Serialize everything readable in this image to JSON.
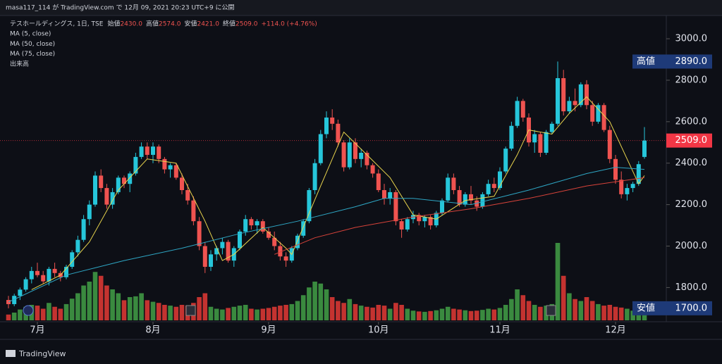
{
  "header": {
    "publisher": "masa117_114 が TradingView.com で 12月 09, 2021 20:23 UTC+9 に公開"
  },
  "footer": {
    "brand": "TradingView"
  },
  "chart_data": {
    "type": "candlestick",
    "symbol": "テスホールディングス, 1日, TSE",
    "ohlc_legend": [
      {
        "label": "始値",
        "value": "2430.0"
      },
      {
        "label": "高値",
        "value": "2574.0"
      },
      {
        "label": "安値",
        "value": "2421.0"
      },
      {
        "label": "終値",
        "value": "2509.0"
      }
    ],
    "change": "+114.0 (+4.76%)",
    "volume_label": "出来高",
    "up_color": "#26c6da",
    "down_color": "#ef5350",
    "volume_up_color": "#43a047",
    "volume_down_color": "#e53935",
    "open": [
      1740,
      1720,
      1760,
      1790,
      1840,
      1880,
      1860,
      1830,
      1890,
      1870,
      1850,
      1900,
      1970,
      2030,
      2130,
      2200,
      2340,
      2280,
      2200,
      2260,
      2330,
      2300,
      2350,
      2430,
      2480,
      2440,
      2480,
      2420,
      2370,
      2390,
      2330,
      2270,
      2220,
      2120,
      2000,
      1900,
      1960,
      1990,
      2020,
      1930,
      1990,
      2070,
      2130,
      2100,
      2120,
      2070,
      2040,
      2000,
      1950,
      1930,
      1990,
      2050,
      2120,
      2270,
      2400,
      2540,
      2620,
      2590,
      2500,
      2380,
      2500,
      2420,
      2450,
      2390,
      2350,
      2270,
      2230,
      2260,
      2120,
      2080,
      2130,
      2150,
      2120,
      2140,
      2100,
      2160,
      2220,
      2330,
      2270,
      2200,
      2250,
      2220,
      2190,
      2250,
      2300,
      2280,
      2360,
      2470,
      2580,
      2700,
      2620,
      2500,
      2540,
      2450,
      2550,
      2590,
      2810,
      2650,
      2700,
      2680,
      2780,
      2680,
      2600,
      2680,
      2560,
      2420,
      2320,
      2250,
      2280,
      2300,
      2430
    ],
    "high": [
      1760,
      1770,
      1800,
      1850,
      1900,
      1920,
      1880,
      1900,
      1920,
      1880,
      1910,
      1980,
      2050,
      2150,
      2220,
      2360,
      2370,
      2300,
      2280,
      2340,
      2340,
      2360,
      2450,
      2500,
      2500,
      2500,
      2490,
      2430,
      2400,
      2400,
      2350,
      2300,
      2240,
      2140,
      2020,
      1980,
      2000,
      2040,
      2030,
      2000,
      2080,
      2150,
      2140,
      2130,
      2130,
      2090,
      2070,
      2020,
      1970,
      2000,
      2060,
      2130,
      2280,
      2420,
      2560,
      2650,
      2660,
      2610,
      2510,
      2520,
      2520,
      2470,
      2460,
      2400,
      2370,
      2300,
      2280,
      2270,
      2130,
      2140,
      2170,
      2160,
      2150,
      2150,
      2170,
      2230,
      2350,
      2350,
      2290,
      2260,
      2290,
      2240,
      2260,
      2320,
      2330,
      2380,
      2480,
      2600,
      2720,
      2710,
      2640,
      2560,
      2550,
      2560,
      2600,
      2890,
      2850,
      2720,
      2760,
      2790,
      2800,
      2700,
      2690,
      2690,
      2580,
      2440,
      2360,
      2300,
      2310,
      2410,
      2574
    ],
    "low": [
      1700,
      1710,
      1740,
      1780,
      1820,
      1850,
      1820,
      1810,
      1850,
      1830,
      1840,
      1890,
      1950,
      2020,
      2100,
      2190,
      2260,
      2180,
      2180,
      2250,
      2280,
      2260,
      2340,
      2420,
      2420,
      2400,
      2400,
      2350,
      2330,
      2320,
      2250,
      2200,
      2100,
      1980,
      1870,
      1880,
      1930,
      1960,
      1920,
      1900,
      1980,
      2050,
      2080,
      2060,
      2060,
      2030,
      1980,
      1930,
      1900,
      1920,
      1980,
      2040,
      2110,
      2250,
      2390,
      2520,
      2560,
      2480,
      2360,
      2370,
      2400,
      2380,
      2370,
      2330,
      2260,
      2200,
      2200,
      2100,
      2040,
      2070,
      2110,
      2100,
      2090,
      2080,
      2090,
      2150,
      2210,
      2250,
      2190,
      2190,
      2200,
      2170,
      2180,
      2240,
      2260,
      2270,
      2350,
      2460,
      2570,
      2600,
      2480,
      2450,
      2430,
      2440,
      2540,
      2580,
      2630,
      2640,
      2650,
      2670,
      2660,
      2580,
      2590,
      2550,
      2400,
      2300,
      2230,
      2220,
      2260,
      2290,
      2421
    ],
    "close": [
      1720,
      1760,
      1790,
      1840,
      1880,
      1860,
      1830,
      1890,
      1870,
      1850,
      1900,
      1970,
      2030,
      2130,
      2200,
      2340,
      2280,
      2200,
      2260,
      2330,
      2300,
      2350,
      2430,
      2480,
      2440,
      2480,
      2420,
      2370,
      2390,
      2330,
      2270,
      2220,
      2120,
      2000,
      1900,
      1960,
      1990,
      2020,
      1930,
      1990,
      2070,
      2130,
      2100,
      2120,
      2070,
      2040,
      2000,
      1950,
      1930,
      1990,
      2050,
      2120,
      2270,
      2400,
      2540,
      2620,
      2590,
      2500,
      2380,
      2500,
      2420,
      2450,
      2390,
      2350,
      2270,
      2230,
      2260,
      2120,
      2080,
      2130,
      2150,
      2120,
      2140,
      2100,
      2160,
      2220,
      2330,
      2270,
      2200,
      2250,
      2220,
      2190,
      2250,
      2300,
      2280,
      2360,
      2470,
      2580,
      2700,
      2620,
      2500,
      2540,
      2450,
      2550,
      2590,
      2810,
      2650,
      2700,
      2680,
      2780,
      2680,
      2600,
      2680,
      2560,
      2420,
      2320,
      2250,
      2280,
      2300,
      2395,
      2509
    ],
    "volume": [
      150,
      200,
      280,
      350,
      400,
      380,
      300,
      450,
      350,
      300,
      420,
      560,
      700,
      900,
      1000,
      1250,
      1150,
      900,
      800,
      700,
      520,
      600,
      620,
      700,
      520,
      480,
      450,
      400,
      380,
      350,
      400,
      380,
      450,
      600,
      700,
      350,
      300,
      280,
      320,
      350,
      380,
      400,
      300,
      280,
      300,
      320,
      350,
      380,
      400,
      420,
      500,
      650,
      850,
      1000,
      950,
      800,
      600,
      500,
      450,
      550,
      420,
      380,
      350,
      330,
      400,
      380,
      300,
      450,
      400,
      300,
      250,
      230,
      220,
      240,
      260,
      300,
      350,
      300,
      280,
      260,
      240,
      250,
      270,
      300,
      280,
      320,
      400,
      550,
      800,
      650,
      500,
      400,
      350,
      380,
      420,
      2000,
      1150,
      700,
      550,
      500,
      600,
      500,
      420,
      380,
      400,
      350,
      330,
      300,
      250,
      280,
      350
    ],
    "moving_averages": [
      {
        "name": "MA (5, close)",
        "color": "#e8d44d",
        "x": [
          4,
          9,
          14,
          19,
          24,
          29,
          34,
          37,
          39,
          44,
          48,
          49,
          54,
          58,
          62,
          66,
          70,
          74,
          79,
          84,
          88,
          90,
          94,
          97,
          100,
          104,
          107,
          109,
          110
        ],
        "values": [
          1790,
          1860,
          2020,
          2270,
          2420,
          2400,
          2120,
          1930,
          1960,
          2090,
          1990,
          1960,
          2290,
          2550,
          2440,
          2330,
          2150,
          2130,
          2220,
          2240,
          2440,
          2560,
          2540,
          2640,
          2720,
          2600,
          2420,
          2300,
          2340
        ]
      },
      {
        "name": "MA (50, close)",
        "color": "#2ea6c4",
        "x": [
          0,
          10,
          20,
          30,
          40,
          50,
          60,
          65,
          70,
          80,
          90,
          100,
          105,
          110
        ],
        "values": [
          1730,
          1860,
          1930,
          1990,
          2060,
          2120,
          2190,
          2230,
          2230,
          2200,
          2270,
          2350,
          2380,
          2370
        ]
      },
      {
        "name": "MA (75, close)",
        "color": "#d8433a",
        "x": [
          46,
          53,
          60,
          70,
          80,
          90,
          100,
          110
        ],
        "values": [
          1960,
          2040,
          2090,
          2140,
          2180,
          2230,
          2290,
          2330
        ]
      }
    ],
    "ylim": [
      1635,
      3119
    ],
    "yticks": [
      {
        "value": 1800,
        "label": "1800.0"
      },
      {
        "value": 2000,
        "label": "2000.0"
      },
      {
        "value": 2200,
        "label": "2200.0"
      },
      {
        "value": 2400,
        "label": "2400.0"
      },
      {
        "value": 2600,
        "label": "2600.0"
      },
      {
        "value": 2800,
        "label": "2800.0"
      },
      {
        "value": 3000,
        "label": "3000.0"
      }
    ],
    "xticks": [
      {
        "value": 5,
        "label": "7月"
      },
      {
        "value": 25,
        "label": "8月"
      },
      {
        "value": 45,
        "label": "9月"
      },
      {
        "value": 64,
        "label": "10月"
      },
      {
        "value": 85,
        "label": "11月"
      },
      {
        "value": 105,
        "label": "12月"
      }
    ],
    "price_markers": [
      {
        "tag": "高値",
        "value": 2890,
        "label": "2890.0",
        "color": "#1e3a78"
      },
      {
        "tag": "安値",
        "value": 1700,
        "label": "1700.0",
        "color": "#1e3a78"
      }
    ],
    "last_price": {
      "value": 2509,
      "label": "2509.0",
      "color": "#f23645"
    }
  }
}
